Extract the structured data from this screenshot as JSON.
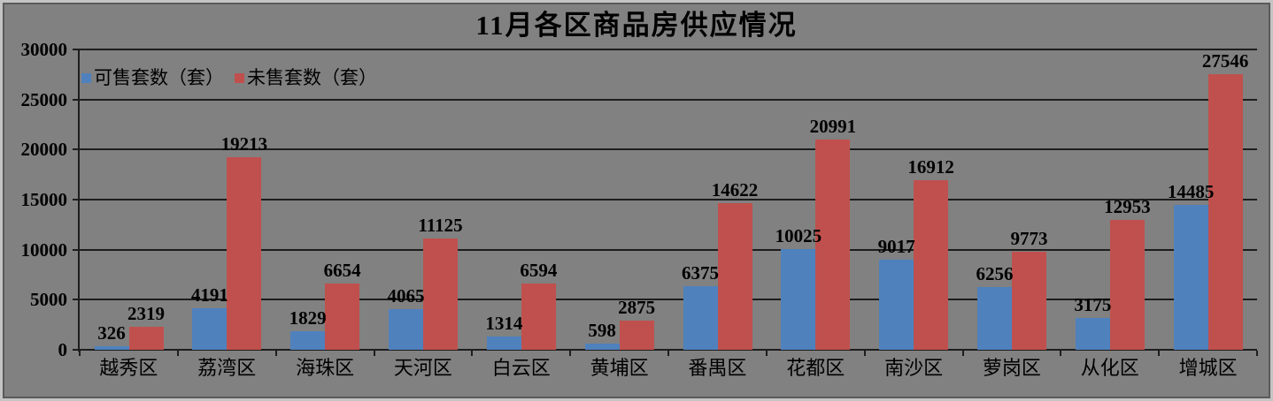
{
  "window": {
    "background": "#818181",
    "frame_outer_color": "#c4c4c4",
    "frame_inner_color": "#5a5a5a",
    "gridline_color": "#1d1d1d",
    "text_color": "#000000"
  },
  "chart_data": {
    "type": "bar",
    "title": "11月各区商品房供应情况",
    "categories": [
      "越秀区",
      "荔湾区",
      "海珠区",
      "天河区",
      "白云区",
      "黄埔区",
      "番禺区",
      "花都区",
      "南沙区",
      "萝岗区",
      "从化区",
      "增城区"
    ],
    "series": [
      {
        "name": "可售套数（套）",
        "color": "#4F81BD",
        "values": [
          326,
          4191,
          1829,
          4065,
          1314,
          598,
          6375,
          10025,
          9017,
          6256,
          3175,
          14485
        ]
      },
      {
        "name": "未售套数（套）",
        "color": "#C0504D",
        "values": [
          2319,
          19213,
          6654,
          11125,
          6594,
          2875,
          14622,
          20991,
          16912,
          9773,
          12953,
          27546
        ]
      }
    ],
    "xlabel": "",
    "ylabel": "",
    "ylim": [
      0,
      30000
    ],
    "yticks": [
      0,
      5000,
      10000,
      15000,
      20000,
      25000,
      30000
    ],
    "grid": "horizontal",
    "legend_position": "top-left",
    "data_labels": true
  }
}
